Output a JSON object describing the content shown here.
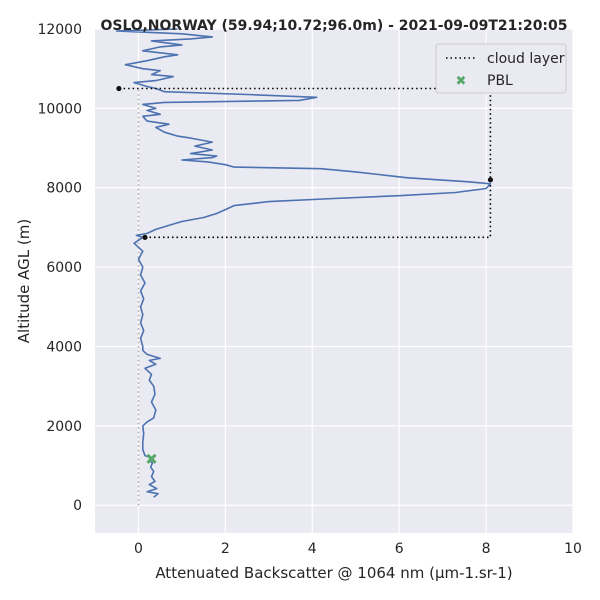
{
  "chart_data": {
    "type": "line",
    "title": "OSLO,NORWAY (59.94;10.72;96.0m) - 2021-09-09T21:20:05",
    "xlabel": "Attenuated Backscatter @ 1064 nm (µm-1.sr-1)",
    "ylabel": "Altitude AGL (m)",
    "xlim": [
      -1,
      10
    ],
    "ylim": [
      -700,
      12000
    ],
    "x_ticks": [
      "0",
      "2",
      "4",
      "6",
      "8",
      "10"
    ],
    "y_ticks": [
      "0",
      "2000",
      "4000",
      "6000",
      "8000",
      "10000",
      "12000"
    ],
    "grid": true,
    "legend_position": "top-right",
    "series": [
      {
        "name": "",
        "style": "line",
        "color": "#4c72b0",
        "points": [
          [
            0.35,
            200
          ],
          [
            0.45,
            290
          ],
          [
            0.2,
            340
          ],
          [
            0.42,
            420
          ],
          [
            0.25,
            520
          ],
          [
            0.38,
            600
          ],
          [
            0.3,
            720
          ],
          [
            0.35,
            850
          ],
          [
            0.28,
            960
          ],
          [
            0.32,
            1060
          ],
          [
            0.25,
            1140
          ],
          [
            0.3,
            1190
          ],
          [
            0.15,
            1250
          ],
          [
            0.1,
            1400
          ],
          [
            0.1,
            1600
          ],
          [
            0.12,
            1800
          ],
          [
            0.1,
            2000
          ],
          [
            0.2,
            2100
          ],
          [
            0.35,
            2200
          ],
          [
            0.4,
            2400
          ],
          [
            0.3,
            2600
          ],
          [
            0.38,
            2800
          ],
          [
            0.35,
            3000
          ],
          [
            0.25,
            3150
          ],
          [
            0.3,
            3300
          ],
          [
            0.15,
            3450
          ],
          [
            0.4,
            3550
          ],
          [
            0.25,
            3650
          ],
          [
            0.5,
            3700
          ],
          [
            0.2,
            3800
          ],
          [
            0.1,
            3900
          ],
          [
            0.1,
            4000
          ],
          [
            0.05,
            4200
          ],
          [
            0.12,
            4400
          ],
          [
            0.05,
            4600
          ],
          [
            0.1,
            4800
          ],
          [
            0.05,
            5000
          ],
          [
            0.12,
            5200
          ],
          [
            0.05,
            5400
          ],
          [
            0.15,
            5600
          ],
          [
            0.05,
            5800
          ],
          [
            0.1,
            6000
          ],
          [
            0.0,
            6200
          ],
          [
            0.1,
            6400
          ],
          [
            -0.1,
            6600
          ],
          [
            0.1,
            6750
          ],
          [
            -0.05,
            6800
          ],
          [
            0.2,
            6850
          ],
          [
            0.4,
            6950
          ],
          [
            0.7,
            7050
          ],
          [
            1.0,
            7150
          ],
          [
            1.5,
            7250
          ],
          [
            1.8,
            7350
          ],
          [
            2.0,
            7450
          ],
          [
            2.2,
            7550
          ],
          [
            3.0,
            7650
          ],
          [
            4.5,
            7730
          ],
          [
            6.0,
            7800
          ],
          [
            7.3,
            7880
          ],
          [
            8.0,
            7980
          ],
          [
            8.1,
            8100
          ],
          [
            7.6,
            8150
          ],
          [
            6.2,
            8250
          ],
          [
            5.0,
            8400
          ],
          [
            4.2,
            8480
          ],
          [
            2.2,
            8520
          ],
          [
            2.0,
            8580
          ],
          [
            1.6,
            8650
          ],
          [
            1.0,
            8700
          ],
          [
            1.7,
            8760
          ],
          [
            1.8,
            8800
          ],
          [
            1.2,
            8860
          ],
          [
            1.7,
            8950
          ],
          [
            1.3,
            9050
          ],
          [
            1.7,
            9150
          ],
          [
            1.2,
            9250
          ],
          [
            0.9,
            9300
          ],
          [
            0.6,
            9400
          ],
          [
            0.4,
            9520
          ],
          [
            0.7,
            9600
          ],
          [
            0.2,
            9680
          ],
          [
            0.1,
            9800
          ],
          [
            0.5,
            9850
          ],
          [
            0.2,
            9950
          ],
          [
            0.4,
            10000
          ],
          [
            0.1,
            10100
          ],
          [
            0.6,
            10150
          ],
          [
            3.7,
            10200
          ],
          [
            4.1,
            10280
          ],
          [
            2.5,
            10350
          ],
          [
            0.6,
            10420
          ],
          [
            0.4,
            10500
          ],
          [
            0.2,
            10550
          ],
          [
            -0.1,
            10650
          ],
          [
            0.4,
            10700
          ],
          [
            0.8,
            10800
          ],
          [
            0.3,
            10850
          ],
          [
            0.5,
            10950
          ],
          [
            0.1,
            11000
          ],
          [
            -0.3,
            11100
          ],
          [
            0.2,
            11200
          ],
          [
            0.6,
            11300
          ],
          [
            0.9,
            11350
          ],
          [
            0.1,
            11450
          ],
          [
            0.5,
            11550
          ],
          [
            1.0,
            11600
          ],
          [
            0.3,
            11700
          ],
          [
            1.2,
            11750
          ],
          [
            1.7,
            11800
          ],
          [
            1.0,
            11880
          ],
          [
            -0.5,
            11950
          ],
          [
            0.9,
            12000
          ]
        ]
      },
      {
        "name": "cloud layer",
        "style": "dotted",
        "color": "#000000",
        "points": [
          [
            0.15,
            6750
          ],
          [
            8.1,
            6750
          ],
          [
            8.1,
            10500
          ],
          [
            -0.45,
            10500
          ]
        ]
      },
      {
        "name": "",
        "style": "dotted",
        "color": "#aaaaaa",
        "points": [
          [
            0,
            0
          ],
          [
            0,
            10500
          ]
        ]
      },
      {
        "name": "",
        "style": "markers",
        "color": "#111111",
        "points": [
          [
            8.1,
            8200
          ],
          [
            0.15,
            6750
          ],
          [
            -0.45,
            10500
          ]
        ]
      },
      {
        "name": "PBL",
        "style": "x-marker",
        "color": "#55a868",
        "points": [
          [
            0.3,
            1170
          ]
        ]
      }
    ]
  }
}
